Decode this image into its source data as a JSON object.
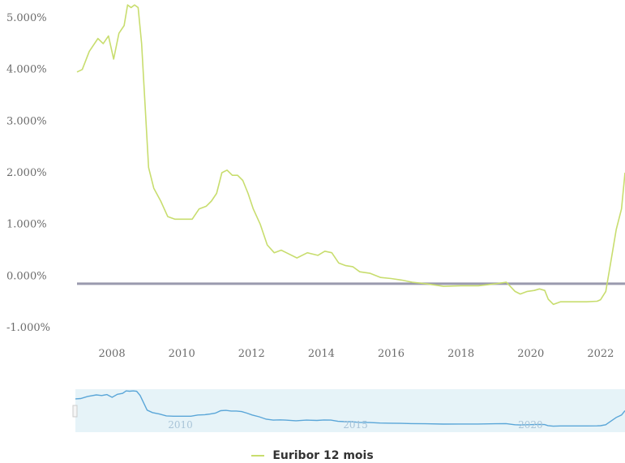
{
  "colors": {
    "series": "#c8dd6e",
    "zero_line": "#9a9aae",
    "navigator_fill": "#e6f3f8",
    "navigator_line": "#5aa6d8",
    "axis_text": "#6b6b6b"
  },
  "chart_data": {
    "type": "line",
    "title": "",
    "xlabel": "",
    "ylabel": "",
    "ylim": [
      -1.0,
      5.0
    ],
    "xlim": [
      2007.0,
      2022.7
    ],
    "y_ticks": [
      "5.000%",
      "4.000%",
      "3.000%",
      "2.000%",
      "1.000%",
      "0.000%",
      "-1.000%"
    ],
    "x_ticks": [
      "2008",
      "2010",
      "2012",
      "2014",
      "2016",
      "2018",
      "2020",
      "2022"
    ],
    "legend": {
      "position": "bottom-center"
    },
    "grid": false,
    "series": [
      {
        "name": "Euribor 12 mois",
        "x": [
          2007.0,
          2007.15,
          2007.35,
          2007.6,
          2007.75,
          2007.9,
          2008.05,
          2008.2,
          2008.35,
          2008.45,
          2008.55,
          2008.65,
          2008.75,
          2008.85,
          2008.95,
          2009.05,
          2009.2,
          2009.4,
          2009.6,
          2009.8,
          2010.0,
          2010.3,
          2010.5,
          2010.7,
          2010.85,
          2011.0,
          2011.15,
          2011.3,
          2011.45,
          2011.6,
          2011.75,
          2011.9,
          2012.05,
          2012.25,
          2012.45,
          2012.65,
          2012.85,
          2013.0,
          2013.3,
          2013.6,
          2013.9,
          2014.1,
          2014.3,
          2014.5,
          2014.7,
          2014.9,
          2015.1,
          2015.4,
          2015.7,
          2016.0,
          2016.3,
          2016.6,
          2017.0,
          2017.5,
          2018.0,
          2018.5,
          2019.0,
          2019.3,
          2019.55,
          2019.7,
          2019.9,
          2020.1,
          2020.25,
          2020.4,
          2020.5,
          2020.65,
          2020.85,
          2021.0,
          2021.3,
          2021.6,
          2021.9,
          2022.0,
          2022.15,
          2022.3,
          2022.45,
          2022.6,
          2022.7
        ],
        "y": [
          3.95,
          4.0,
          4.35,
          4.6,
          4.5,
          4.65,
          4.2,
          4.7,
          4.85,
          5.25,
          5.2,
          5.25,
          5.2,
          4.5,
          3.3,
          2.1,
          1.7,
          1.45,
          1.15,
          1.1,
          1.1,
          1.1,
          1.3,
          1.35,
          1.45,
          1.6,
          2.0,
          2.05,
          1.95,
          1.95,
          1.85,
          1.6,
          1.3,
          1.0,
          0.6,
          0.45,
          0.5,
          0.45,
          0.35,
          0.45,
          0.4,
          0.48,
          0.45,
          0.25,
          0.2,
          0.18,
          0.08,
          0.05,
          -0.03,
          -0.05,
          -0.08,
          -0.12,
          -0.15,
          -0.2,
          -0.19,
          -0.19,
          -0.15,
          -0.12,
          -0.3,
          -0.35,
          -0.3,
          -0.28,
          -0.25,
          -0.28,
          -0.45,
          -0.55,
          -0.5,
          -0.5,
          -0.5,
          -0.5,
          -0.49,
          -0.46,
          -0.3,
          0.3,
          0.9,
          1.3,
          2.0
        ]
      }
    ],
    "reference_line": {
      "y": -0.15
    },
    "navigator": {
      "x_ticks": [
        "2010",
        "2015",
        "2020"
      ]
    }
  }
}
